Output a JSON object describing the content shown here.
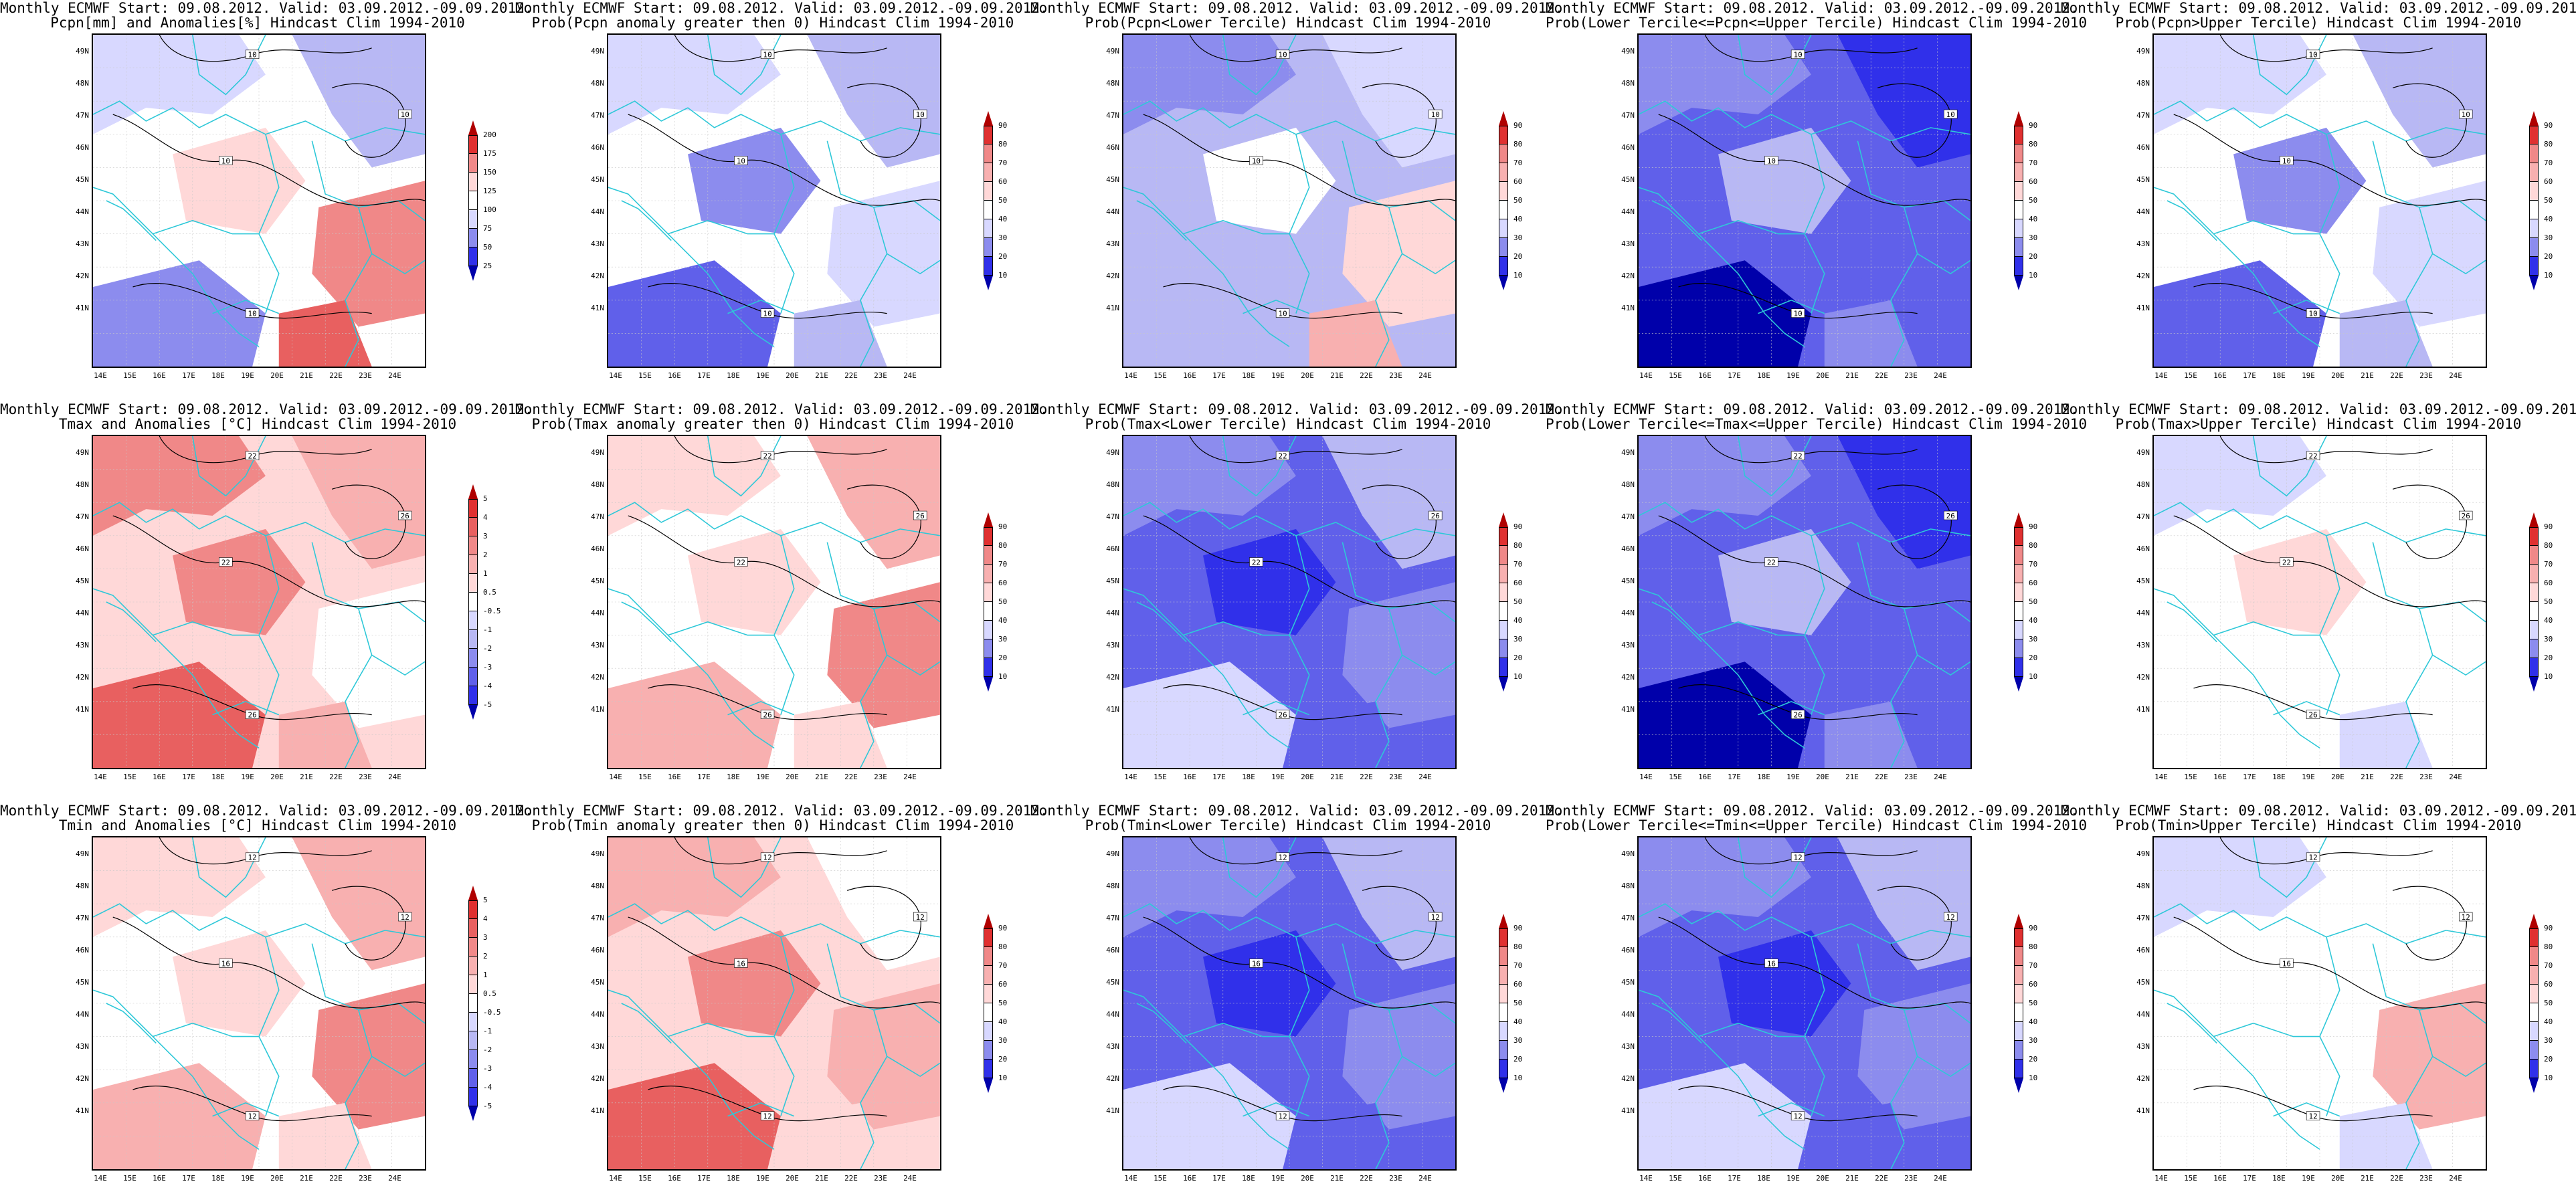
{
  "header": "Monthly ECMWF Start: 09.08.2012. Valid: 03.09.2012.-09.09.2012.",
  "latitude_labels": [
    "49N",
    "48N",
    "47N",
    "46N",
    "45N",
    "44N",
    "43N",
    "42N",
    "41N"
  ],
  "longitude_labels": [
    "14E",
    "15E",
    "16E",
    "17E",
    "18E",
    "19E",
    "20E",
    "21E",
    "22E",
    "23E",
    "24E"
  ],
  "colors": {
    "coast_border": "#2ec8d8",
    "contour": "#000000",
    "pos": [
      "#ffd8d8",
      "#f8b0b0",
      "#f08888",
      "#e86060",
      "#e03030",
      "#b00000"
    ],
    "neg": [
      "#d8d8ff",
      "#b8b8f4",
      "#8c8cee",
      "#6060ea",
      "#3030ea",
      "#0000aa"
    ]
  },
  "panels": [
    {
      "id": "p00",
      "title2": "Pcpn[mm] and Anomalies[%] Hindcast Clim 1994-2010",
      "colorbar": [
        "200",
        "175",
        "150",
        "125",
        "100",
        "75",
        "50",
        "25"
      ],
      "cb_colors": [
        "#b00000",
        "#e03030",
        "#f08888",
        "#ffd8d8",
        "#ffffff",
        "#d8d8ff",
        "#8c8cee",
        "#3030ea",
        "#0000aa"
      ],
      "fill": "mixed_pcpn",
      "contours": [
        "10",
        "10",
        "10",
        "10"
      ]
    },
    {
      "id": "p01",
      "title2": "Prob(Pcpn anomaly greater then 0) Hindcast Clim 1994-2010",
      "colorbar": [
        "90",
        "80",
        "70",
        "60",
        "50",
        "40",
        "30",
        "20",
        "10"
      ],
      "cb_colors": [
        "#b00000",
        "#e03030",
        "#f08888",
        "#f8b0b0",
        "#ffd8d8",
        "#ffffff",
        "#d8d8ff",
        "#8c8cee",
        "#3030ea",
        "#0000aa"
      ],
      "fill": "blue_light",
      "contours": [
        "10",
        "10",
        "10",
        "10"
      ]
    },
    {
      "id": "p02",
      "title2": "Prob(Pcpn<Lower Tercile) Hindcast Clim 1994-2010",
      "colorbar": [
        "90",
        "80",
        "70",
        "60",
        "50",
        "40",
        "30",
        "20",
        "10"
      ],
      "cb_colors": [
        "#b00000",
        "#e03030",
        "#f08888",
        "#f8b0b0",
        "#ffd8d8",
        "#ffffff",
        "#d8d8ff",
        "#8c8cee",
        "#3030ea",
        "#0000aa"
      ],
      "fill": "blue_mid_redbottom",
      "contours": [
        "10",
        "10",
        "10",
        "10"
      ]
    },
    {
      "id": "p03",
      "title2": "Prob(Lower Tercile<=Pcpn<=Upper Tercile) Hindcast Clim 1994-2010",
      "colorbar": [
        "90",
        "80",
        "70",
        "60",
        "50",
        "40",
        "30",
        "20",
        "10"
      ],
      "cb_colors": [
        "#b00000",
        "#e03030",
        "#f08888",
        "#f8b0b0",
        "#ffd8d8",
        "#ffffff",
        "#d8d8ff",
        "#8c8cee",
        "#3030ea",
        "#0000aa"
      ],
      "fill": "blue_dark",
      "contours": [
        "10",
        "10",
        "10",
        "10"
      ]
    },
    {
      "id": "p04",
      "title2": "Prob(Pcpn>Upper Tercile) Hindcast Clim 1994-2010",
      "colorbar": [
        "90",
        "80",
        "70",
        "60",
        "50",
        "40",
        "30",
        "20",
        "10"
      ],
      "cb_colors": [
        "#b00000",
        "#e03030",
        "#f08888",
        "#f8b0b0",
        "#ffd8d8",
        "#ffffff",
        "#d8d8ff",
        "#8c8cee",
        "#3030ea",
        "#0000aa"
      ],
      "fill": "blue_light",
      "contours": [
        "10",
        "10",
        "10",
        "10"
      ]
    },
    {
      "id": "p10",
      "title2": "Tmax and Anomalies [°C] Hindcast Clim 1994-2010",
      "colorbar": [
        "5",
        "4",
        "3",
        "2",
        "1",
        "0.5",
        "-0.5",
        "-1",
        "-2",
        "-3",
        "-4",
        "-5"
      ],
      "cb_colors": [
        "#b00000",
        "#e03030",
        "#e86060",
        "#f08888",
        "#f8b0b0",
        "#ffd8d8",
        "#ffffff",
        "#d8d8ff",
        "#b8b8f4",
        "#8c8cee",
        "#6060ea",
        "#3030ea",
        "#0000aa"
      ],
      "fill": "red_mid",
      "contours": [
        "22",
        "26",
        "22",
        "26"
      ]
    },
    {
      "id": "p11",
      "title2": "Prob(Tmax anomaly greater then 0) Hindcast Clim 1994-2010",
      "colorbar": [
        "90",
        "80",
        "70",
        "60",
        "50",
        "40",
        "30",
        "20",
        "10"
      ],
      "cb_colors": [
        "#b00000",
        "#e03030",
        "#f08888",
        "#f8b0b0",
        "#ffd8d8",
        "#ffffff",
        "#d8d8ff",
        "#8c8cee",
        "#3030ea",
        "#0000aa"
      ],
      "fill": "red_light",
      "contours": [
        "22",
        "26",
        "22",
        "26"
      ]
    },
    {
      "id": "p12",
      "title2": "Prob(Tmax<Lower Tercile) Hindcast Clim 1994-2010",
      "colorbar": [
        "90",
        "80",
        "70",
        "60",
        "50",
        "40",
        "30",
        "20",
        "10"
      ],
      "cb_colors": [
        "#b00000",
        "#e03030",
        "#f08888",
        "#f8b0b0",
        "#ffd8d8",
        "#ffffff",
        "#d8d8ff",
        "#8c8cee",
        "#3030ea",
        "#0000aa"
      ],
      "fill": "blue_mid",
      "contours": [
        "22",
        "26",
        "22",
        "26"
      ]
    },
    {
      "id": "p13",
      "title2": "Prob(Lower Tercile<=Tmax<=Upper Tercile) Hindcast Clim 1994-2010",
      "colorbar": [
        "90",
        "80",
        "70",
        "60",
        "50",
        "40",
        "30",
        "20",
        "10"
      ],
      "cb_colors": [
        "#b00000",
        "#e03030",
        "#f08888",
        "#f8b0b0",
        "#ffd8d8",
        "#ffffff",
        "#d8d8ff",
        "#8c8cee",
        "#3030ea",
        "#0000aa"
      ],
      "fill": "blue_dark",
      "contours": [
        "22",
        "26",
        "22",
        "26"
      ]
    },
    {
      "id": "p14",
      "title2": "Prob(Tmax>Upper Tercile) Hindcast Clim 1994-2010",
      "colorbar": [
        "90",
        "80",
        "70",
        "60",
        "50",
        "40",
        "30",
        "20",
        "10"
      ],
      "cb_colors": [
        "#b00000",
        "#e03030",
        "#f08888",
        "#f8b0b0",
        "#ffd8d8",
        "#ffffff",
        "#d8d8ff",
        "#8c8cee",
        "#3030ea",
        "#0000aa"
      ],
      "fill": "white_mostly",
      "contours": [
        "22",
        "26",
        "22",
        "26"
      ]
    },
    {
      "id": "p20",
      "title2": "Tmin and Anomalies [°C] Hindcast Clim 1994-2010",
      "colorbar": [
        "5",
        "4",
        "3",
        "2",
        "1",
        "0.5",
        "-0.5",
        "-1",
        "-2",
        "-3",
        "-4",
        "-5"
      ],
      "cb_colors": [
        "#b00000",
        "#e03030",
        "#e86060",
        "#f08888",
        "#f8b0b0",
        "#ffd8d8",
        "#ffffff",
        "#d8d8ff",
        "#b8b8f4",
        "#8c8cee",
        "#6060ea",
        "#3030ea",
        "#0000aa"
      ],
      "fill": "red_light",
      "contours": [
        "12",
        "12",
        "16",
        "12"
      ]
    },
    {
      "id": "p21",
      "title2": "Prob(Tmin anomaly greater then 0) Hindcast Clim 1994-2010",
      "colorbar": [
        "90",
        "80",
        "70",
        "60",
        "50",
        "40",
        "30",
        "20",
        "10"
      ],
      "cb_colors": [
        "#b00000",
        "#e03030",
        "#f08888",
        "#f8b0b0",
        "#ffd8d8",
        "#ffffff",
        "#d8d8ff",
        "#8c8cee",
        "#3030ea",
        "#0000aa"
      ],
      "fill": "red_light_strong",
      "contours": [
        "12",
        "12",
        "16",
        "12"
      ]
    },
    {
      "id": "p22",
      "title2": "Prob(Tmin<Lower Tercile) Hindcast Clim 1994-2010",
      "colorbar": [
        "90",
        "80",
        "70",
        "60",
        "50",
        "40",
        "30",
        "20",
        "10"
      ],
      "cb_colors": [
        "#b00000",
        "#e03030",
        "#f08888",
        "#f8b0b0",
        "#ffd8d8",
        "#ffffff",
        "#d8d8ff",
        "#8c8cee",
        "#3030ea",
        "#0000aa"
      ],
      "fill": "blue_mid",
      "contours": [
        "12",
        "12",
        "16",
        "12"
      ]
    },
    {
      "id": "p23",
      "title2": "Prob(Lower Tercile<=Tmin<=Upper Tercile) Hindcast Clim 1994-2010",
      "colorbar": [
        "90",
        "80",
        "70",
        "60",
        "50",
        "40",
        "30",
        "20",
        "10"
      ],
      "cb_colors": [
        "#b00000",
        "#e03030",
        "#f08888",
        "#f8b0b0",
        "#ffd8d8",
        "#ffffff",
        "#d8d8ff",
        "#8c8cee",
        "#3030ea",
        "#0000aa"
      ],
      "fill": "blue_mid",
      "contours": [
        "12",
        "12",
        "16",
        "12"
      ]
    },
    {
      "id": "p24",
      "title2": "Prob(Tmin>Upper Tercile) Hindcast Clim 1994-2010",
      "colorbar": [
        "90",
        "80",
        "70",
        "60",
        "50",
        "40",
        "30",
        "20",
        "10"
      ],
      "cb_colors": [
        "#b00000",
        "#e03030",
        "#f08888",
        "#f8b0b0",
        "#ffd8d8",
        "#ffffff",
        "#d8d8ff",
        "#8c8cee",
        "#3030ea",
        "#0000aa"
      ],
      "fill": "white_redspot",
      "contours": [
        "12",
        "12",
        "16",
        "12"
      ]
    }
  ]
}
